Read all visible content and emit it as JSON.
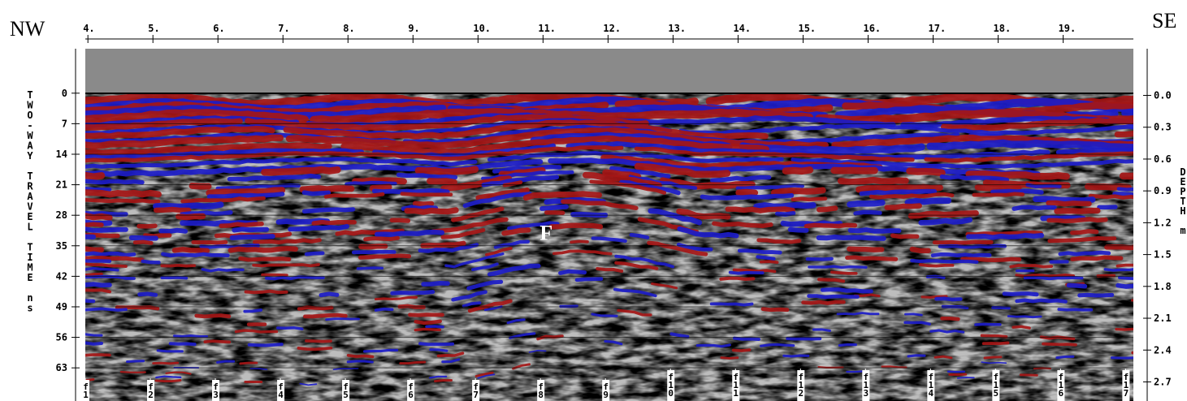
{
  "chart_data": {
    "type": "radargram",
    "corner_labels": {
      "left": "NW",
      "right": "SE"
    },
    "ylabel": "TWO-WAY TRAVEL TIME ns",
    "y2label": "DEPTH m",
    "annotation": {
      "text": "F",
      "x": 11.05,
      "y": 32
    },
    "xlim": [
      3.96,
      20.08
    ],
    "xticks": [
      {
        "value": 4,
        "label": "4."
      },
      {
        "value": 5,
        "label": "5."
      },
      {
        "value": 6,
        "label": "6."
      },
      {
        "value": 7,
        "label": "7."
      },
      {
        "value": 8,
        "label": "8."
      },
      {
        "value": 9,
        "label": "9."
      },
      {
        "value": 10,
        "label": "10."
      },
      {
        "value": 11,
        "label": "11."
      },
      {
        "value": 12,
        "label": "12."
      },
      {
        "value": 13,
        "label": "13."
      },
      {
        "value": 14,
        "label": "14."
      },
      {
        "value": 15,
        "label": "15."
      },
      {
        "value": 16,
        "label": "16."
      },
      {
        "value": 17,
        "label": "17."
      },
      {
        "value": 18,
        "label": "18."
      },
      {
        "value": 19,
        "label": "19."
      }
    ],
    "ylim": [
      -10.2,
      70.6
    ],
    "yticks": [
      0,
      7,
      14,
      21,
      28,
      35,
      42,
      49,
      56,
      63
    ],
    "y2lim": [
      -0.44,
      2.88
    ],
    "y2ticks": [
      {
        "value": 0,
        "label": "0.0"
      },
      0.3,
      0.6,
      0.9,
      1.2,
      1.5,
      1.8,
      2.1,
      2.4,
      2.7
    ],
    "markers": [
      {
        "label": "f1",
        "x": 3.96
      },
      {
        "label": "f2",
        "x": 4.96
      },
      {
        "label": "f3",
        "x": 5.96
      },
      {
        "label": "f4",
        "x": 6.96
      },
      {
        "label": "f5",
        "x": 7.96
      },
      {
        "label": "f6",
        "x": 8.96
      },
      {
        "label": "f7",
        "x": 9.96
      },
      {
        "label": "f8",
        "x": 10.96
      },
      {
        "label": "f9",
        "x": 11.96
      },
      {
        "label": "f10",
        "x": 12.96
      },
      {
        "label": "f11",
        "x": 13.96
      },
      {
        "label": "f12",
        "x": 14.96
      },
      {
        "label": "f13",
        "x": 15.96
      },
      {
        "label": "f14",
        "x": 16.96
      },
      {
        "label": "f15",
        "x": 17.96
      },
      {
        "label": "f16",
        "x": 18.96
      },
      {
        "label": "f17",
        "x": 19.96
      }
    ]
  }
}
